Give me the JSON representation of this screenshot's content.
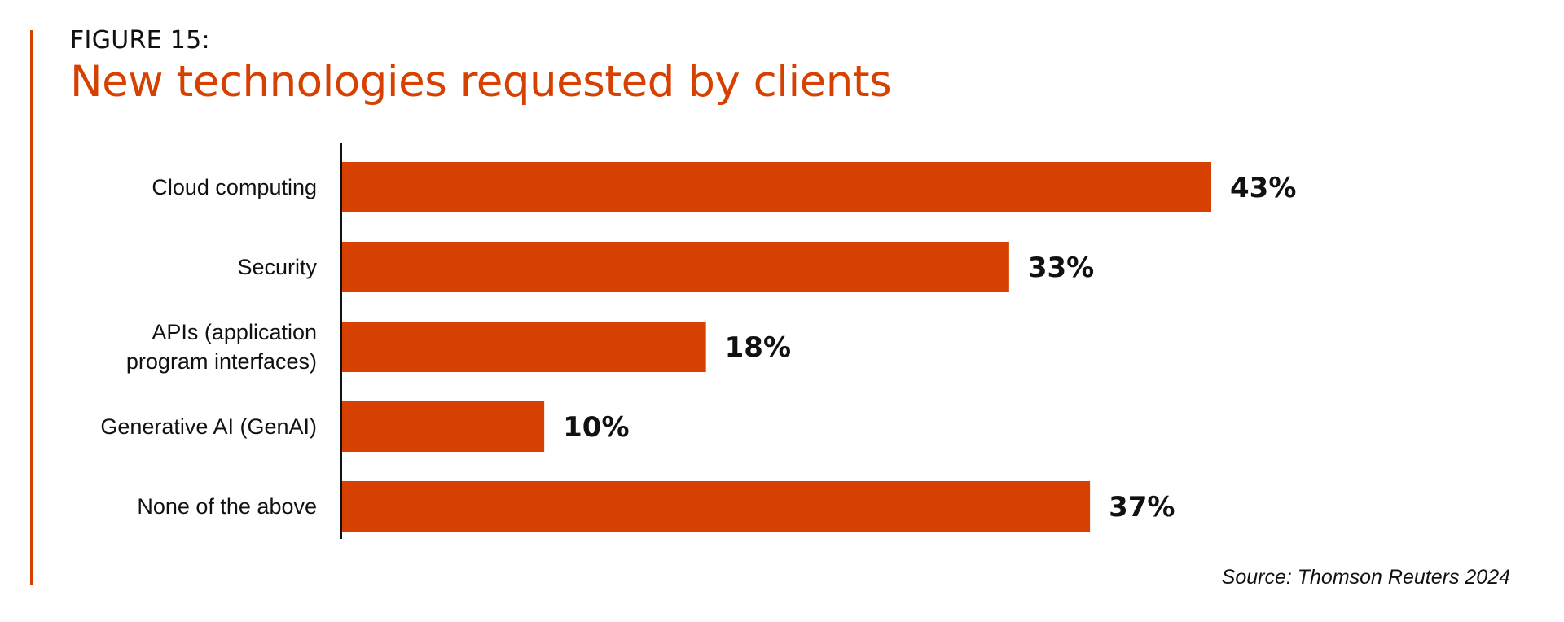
{
  "figure_label": "FIGURE 15:",
  "source": "Source: Thomson Reuters 2024",
  "colors": {
    "accent": "#D64000",
    "bar": "#D64000",
    "text": "#111111",
    "axis": "#111111"
  },
  "chart_data": {
    "type": "bar",
    "orientation": "horizontal",
    "title": "New technologies requested by clients",
    "categories": [
      [
        "Cloud computing"
      ],
      [
        "Security"
      ],
      [
        "APIs (application",
        "program interfaces)"
      ],
      [
        "Generative AI (GenAI)"
      ],
      [
        "None of the above"
      ]
    ],
    "values": [
      43,
      33,
      18,
      10,
      37
    ],
    "value_labels": [
      "43%",
      "33%",
      "18%",
      "10%",
      "37%"
    ],
    "unit": "%",
    "xlim": [
      0,
      43
    ],
    "grid": false,
    "legend": "none"
  }
}
